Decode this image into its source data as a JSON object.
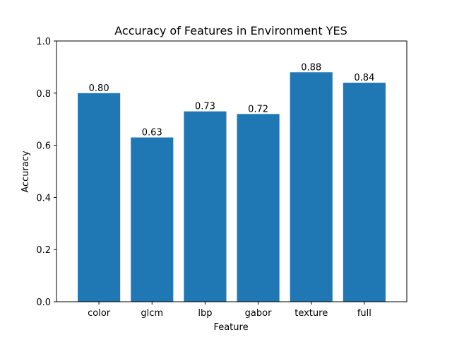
{
  "chart_data": {
    "type": "bar",
    "title": "Accuracy of Features in Environment YES",
    "xlabel": "Feature",
    "ylabel": "Accuracy",
    "categories": [
      "color",
      "glcm",
      "lbp",
      "gabor",
      "texture",
      "full"
    ],
    "values": [
      0.8,
      0.63,
      0.73,
      0.72,
      0.88,
      0.84
    ],
    "value_labels": [
      "0.80",
      "0.63",
      "0.73",
      "0.72",
      "0.88",
      "0.84"
    ],
    "ylim": [
      0,
      1.0
    ],
    "yticks": [
      0.0,
      0.2,
      0.4,
      0.6,
      0.8,
      1.0
    ],
    "ytick_labels": [
      "0.0",
      "0.2",
      "0.4",
      "0.6",
      "0.8",
      "1.0"
    ],
    "bar_color": "#1f77b4",
    "grid": false
  }
}
